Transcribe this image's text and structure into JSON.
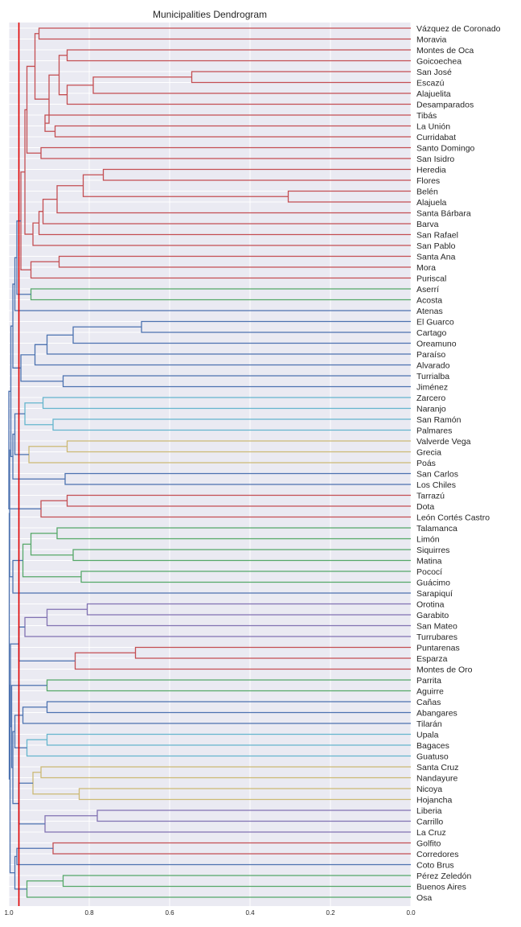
{
  "chart_data": {
    "type": "dendrogram",
    "title": "Municipalities Dendrogram",
    "orientation": "left",
    "x_axis": {
      "ticks": [
        "1.0",
        "0.8",
        "0.6",
        "0.4",
        "0.2",
        "0.0"
      ],
      "range": [
        1.0,
        0.0
      ]
    },
    "grid": true,
    "cut_line": {
      "value": 0.975,
      "color": "#e00000"
    },
    "colors": {
      "red": "#c44e52",
      "green": "#55a868",
      "blue": "#4c72b0",
      "cyan": "#64b5cd",
      "olive": "#ccb974",
      "purple": "#8172b2",
      "background": "#eaeaf2"
    },
    "leaves": [
      "Vázquez de Coronado",
      "Moravia",
      "Montes de Oca",
      "Goicoechea",
      "San José",
      "Escazú",
      "Alajuelita",
      "Desamparados",
      "Tibás",
      "La Unión",
      "Curridabat",
      "Santo Domingo",
      "San Isidro",
      "Heredia",
      "Flores",
      "Belén",
      "Alajuela",
      "Santa Bárbara",
      "Barva",
      "San Rafael",
      "San Pablo",
      "Santa Ana",
      "Mora",
      "Puriscal",
      "Aserrí",
      "Acosta",
      "Atenas",
      "El Guarco",
      "Cartago",
      "Oreamuno",
      "Paraíso",
      "Alvarado",
      "Turrialba",
      "Jiménez",
      "Zarcero",
      "Naranjo",
      "San Ramón",
      "Palmares",
      "Valverde Vega",
      "Grecia",
      "Poás",
      "San Carlos",
      "Los Chiles",
      "Tarrazú",
      "Dota",
      "León Cortés Castro",
      "Talamanca",
      "Limón",
      "Siquirres",
      "Matina",
      "Pococí",
      "Guácimo",
      "Sarapiquí",
      "Orotina",
      "Garabito",
      "San Mateo",
      "Turrubares",
      "Puntarenas",
      "Esparza",
      "Montes de Oro",
      "Parrita",
      "Aguirre",
      "Cañas",
      "Abangares",
      "Tilarán",
      "Upala",
      "Bagaces",
      "Guatuso",
      "Santa Cruz",
      "Nandayure",
      "Nicoya",
      "Hojancha",
      "Liberia",
      "Carrillo",
      "La Cruz",
      "Golfito",
      "Corredores",
      "Coto Brus",
      "Pérez Zeledón",
      "Buenos Aires",
      "Osa"
    ],
    "merges": [
      {
        "id": "m1",
        "a": "Vázquez de Coronado",
        "b": "Moravia",
        "h": 0.925,
        "c": "red"
      },
      {
        "id": "m2",
        "a": "Montes de Oca",
        "b": "Goicoechea",
        "h": 0.855,
        "c": "red"
      },
      {
        "id": "m3",
        "a": "San José",
        "b": "Escazú",
        "h": 0.545,
        "c": "red"
      },
      {
        "id": "m4",
        "a": "m3",
        "b": "Alajuelita",
        "h": 0.79,
        "c": "red"
      },
      {
        "id": "m5",
        "a": "m4",
        "b": "Desamparados",
        "h": 0.855,
        "c": "red"
      },
      {
        "id": "m6",
        "a": "m2",
        "b": "m5",
        "h": 0.875,
        "c": "red"
      },
      {
        "id": "m7",
        "a": "La Unión",
        "b": "Curridabat",
        "h": 0.885,
        "c": "red"
      },
      {
        "id": "m8",
        "a": "Tibás",
        "b": "m7",
        "h": 0.91,
        "c": "red"
      },
      {
        "id": "m9",
        "a": "m6",
        "b": "m8",
        "h": 0.9,
        "c": "red"
      },
      {
        "id": "m10",
        "a": "m1",
        "b": "m9",
        "h": 0.935,
        "c": "red"
      },
      {
        "id": "m11",
        "a": "Santo Domingo",
        "b": "San Isidro",
        "h": 0.92,
        "c": "red"
      },
      {
        "id": "m12",
        "a": "m10",
        "b": "m11",
        "h": 0.955,
        "c": "red"
      },
      {
        "id": "m13",
        "a": "Heredia",
        "b": "Flores",
        "h": 0.765,
        "c": "red"
      },
      {
        "id": "m14",
        "a": "Belén",
        "b": "Alajuela",
        "h": 0.305,
        "c": "red"
      },
      {
        "id": "m15",
        "a": "m13",
        "b": "m14",
        "h": 0.815,
        "c": "red"
      },
      {
        "id": "m16",
        "a": "m15",
        "b": "Santa Bárbara",
        "h": 0.88,
        "c": "red"
      },
      {
        "id": "m17",
        "a": "m16",
        "b": "Barva",
        "h": 0.915,
        "c": "red"
      },
      {
        "id": "m18",
        "a": "m17",
        "b": "San Rafael",
        "h": 0.925,
        "c": "red"
      },
      {
        "id": "m19",
        "a": "m18",
        "b": "San Pablo",
        "h": 0.94,
        "c": "red"
      },
      {
        "id": "m20",
        "a": "m12",
        "b": "m19",
        "h": 0.96,
        "c": "red"
      },
      {
        "id": "m21",
        "a": "Santa Ana",
        "b": "Mora",
        "h": 0.875,
        "c": "red"
      },
      {
        "id": "m22",
        "a": "m21",
        "b": "Puriscal",
        "h": 0.945,
        "c": "red"
      },
      {
        "id": "m23",
        "a": "m20",
        "b": "m22",
        "h": 0.97,
        "c": "red"
      },
      {
        "id": "m24",
        "a": "Aserrí",
        "b": "Acosta",
        "h": 0.945,
        "c": "green"
      },
      {
        "id": "m25",
        "a": "m23",
        "b": "m24",
        "h": 0.98,
        "c": "blue"
      },
      {
        "id": "m26",
        "a": "m25",
        "b": "Atenas",
        "h": 0.985,
        "c": "blue"
      },
      {
        "id": "m27",
        "a": "El Guarco",
        "b": "Cartago",
        "h": 0.67,
        "c": "blue"
      },
      {
        "id": "m28",
        "a": "m27",
        "b": "Oreamuno",
        "h": 0.84,
        "c": "blue"
      },
      {
        "id": "m29",
        "a": "m28",
        "b": "Paraíso",
        "h": 0.905,
        "c": "blue"
      },
      {
        "id": "m30",
        "a": "m29",
        "b": "Alvarado",
        "h": 0.935,
        "c": "blue"
      },
      {
        "id": "m31",
        "a": "Turrialba",
        "b": "Jiménez",
        "h": 0.865,
        "c": "blue"
      },
      {
        "id": "m32",
        "a": "m30",
        "b": "m31",
        "h": 0.97,
        "c": "blue"
      },
      {
        "id": "m33",
        "a": "m26",
        "b": "m32",
        "h": 0.99,
        "c": "blue"
      },
      {
        "id": "m34",
        "a": "Zarcero",
        "b": "Naranjo",
        "h": 0.915,
        "c": "cyan"
      },
      {
        "id": "m35",
        "a": "San Ramón",
        "b": "Palmares",
        "h": 0.89,
        "c": "cyan"
      },
      {
        "id": "m36",
        "a": "m34",
        "b": "m35",
        "h": 0.96,
        "c": "cyan"
      },
      {
        "id": "m37",
        "a": "Valverde Vega",
        "b": "Grecia",
        "h": 0.855,
        "c": "olive"
      },
      {
        "id": "m38",
        "a": "m37",
        "b": "Poás",
        "h": 0.95,
        "c": "olive"
      },
      {
        "id": "m39",
        "a": "m36",
        "b": "m38",
        "h": 0.985,
        "c": "blue"
      },
      {
        "id": "m40",
        "a": "San Carlos",
        "b": "Los Chiles",
        "h": 0.86,
        "c": "blue"
      },
      {
        "id": "m41",
        "a": "m39",
        "b": "m40",
        "h": 0.99,
        "c": "blue"
      },
      {
        "id": "m42",
        "a": "m33",
        "b": "m41",
        "h": 0.995,
        "c": "blue"
      },
      {
        "id": "m43",
        "a": "Tarrazú",
        "b": "Dota",
        "h": 0.855,
        "c": "red"
      },
      {
        "id": "m44",
        "a": "m43",
        "b": "León Cortés Castro",
        "h": 0.92,
        "c": "red"
      },
      {
        "id": "m45",
        "a": "m42",
        "b": "m44",
        "h": 1.0,
        "c": "blue"
      },
      {
        "id": "m46",
        "a": "Talamanca",
        "b": "Limón",
        "h": 0.88,
        "c": "green"
      },
      {
        "id": "m47",
        "a": "Siquirres",
        "b": "Matina",
        "h": 0.84,
        "c": "green"
      },
      {
        "id": "m48",
        "a": "m46",
        "b": "m47",
        "h": 0.945,
        "c": "green"
      },
      {
        "id": "m49",
        "a": "Pococí",
        "b": "Guácimo",
        "h": 0.82,
        "c": "green"
      },
      {
        "id": "m50",
        "a": "m48",
        "b": "m49",
        "h": 0.965,
        "c": "green"
      },
      {
        "id": "m51",
        "a": "m50",
        "b": "Sarapiquí",
        "h": 0.99,
        "c": "blue"
      },
      {
        "id": "m52",
        "a": "m45",
        "b": "m51",
        "h": 0.998,
        "c": "blue"
      },
      {
        "id": "m53",
        "a": "Orotina",
        "b": "Garabito",
        "h": 0.805,
        "c": "purple"
      },
      {
        "id": "m54",
        "a": "m53",
        "b": "San Mateo",
        "h": 0.905,
        "c": "purple"
      },
      {
        "id": "m55",
        "a": "m54",
        "b": "Turrubares",
        "h": 0.96,
        "c": "purple"
      },
      {
        "id": "m56",
        "a": "Puntarenas",
        "b": "Esparza",
        "h": 0.685,
        "c": "red"
      },
      {
        "id": "m57",
        "a": "m56",
        "b": "Montes de Oro",
        "h": 0.835,
        "c": "red"
      },
      {
        "id": "m58",
        "a": "m55",
        "b": "m57",
        "h": 0.975,
        "c": "blue"
      },
      {
        "id": "m59",
        "a": "Parrita",
        "b": "Aguirre",
        "h": 0.905,
        "c": "green"
      },
      {
        "id": "m60",
        "a": "Cañas",
        "b": "Abangares",
        "h": 0.905,
        "c": "blue"
      },
      {
        "id": "m61",
        "a": "m60",
        "b": "Tilarán",
        "h": 0.965,
        "c": "blue"
      },
      {
        "id": "m62",
        "a": "Upala",
        "b": "Bagaces",
        "h": 0.905,
        "c": "cyan"
      },
      {
        "id": "m63",
        "a": "m62",
        "b": "Guatuso",
        "h": 0.955,
        "c": "cyan"
      },
      {
        "id": "m64",
        "a": "m61",
        "b": "m63",
        "h": 0.985,
        "c": "blue"
      },
      {
        "id": "m65",
        "a": "Santa Cruz",
        "b": "Nandayure",
        "h": 0.92,
        "c": "olive"
      },
      {
        "id": "m66",
        "a": "Nicoya",
        "b": "Hojancha",
        "h": 0.825,
        "c": "olive"
      },
      {
        "id": "m67",
        "a": "m65",
        "b": "m66",
        "h": 0.94,
        "c": "olive"
      },
      {
        "id": "m68",
        "a": "Liberia",
        "b": "Carrillo",
        "h": 0.78,
        "c": "purple"
      },
      {
        "id": "m69",
        "a": "m68",
        "b": "La Cruz",
        "h": 0.91,
        "c": "purple"
      },
      {
        "id": "m70",
        "a": "m67",
        "b": "m69",
        "h": 0.975,
        "c": "blue"
      },
      {
        "id": "m71",
        "a": "m64",
        "b": "m70",
        "h": 0.99,
        "c": "blue"
      },
      {
        "id": "m72",
        "a": "m59",
        "b": "m71",
        "h": 0.993,
        "c": "blue"
      },
      {
        "id": "m73",
        "a": "m58",
        "b": "m72",
        "h": 0.996,
        "c": "blue"
      },
      {
        "id": "m74",
        "a": "Golfito",
        "b": "Corredores",
        "h": 0.89,
        "c": "red"
      },
      {
        "id": "m75",
        "a": "m74",
        "b": "Coto Brus",
        "h": 0.98,
        "c": "blue"
      },
      {
        "id": "m76",
        "a": "Pérez Zeledón",
        "b": "Buenos Aires",
        "h": 0.865,
        "c": "green"
      },
      {
        "id": "m77",
        "a": "m76",
        "b": "Osa",
        "h": 0.955,
        "c": "green"
      },
      {
        "id": "m78",
        "a": "m75",
        "b": "m77",
        "h": 0.985,
        "c": "blue"
      },
      {
        "id": "m79",
        "a": "m73",
        "b": "m78",
        "h": 0.997,
        "c": "blue"
      },
      {
        "id": "m80",
        "a": "m52",
        "b": "m79",
        "h": 0.999,
        "c": "blue"
      }
    ]
  }
}
